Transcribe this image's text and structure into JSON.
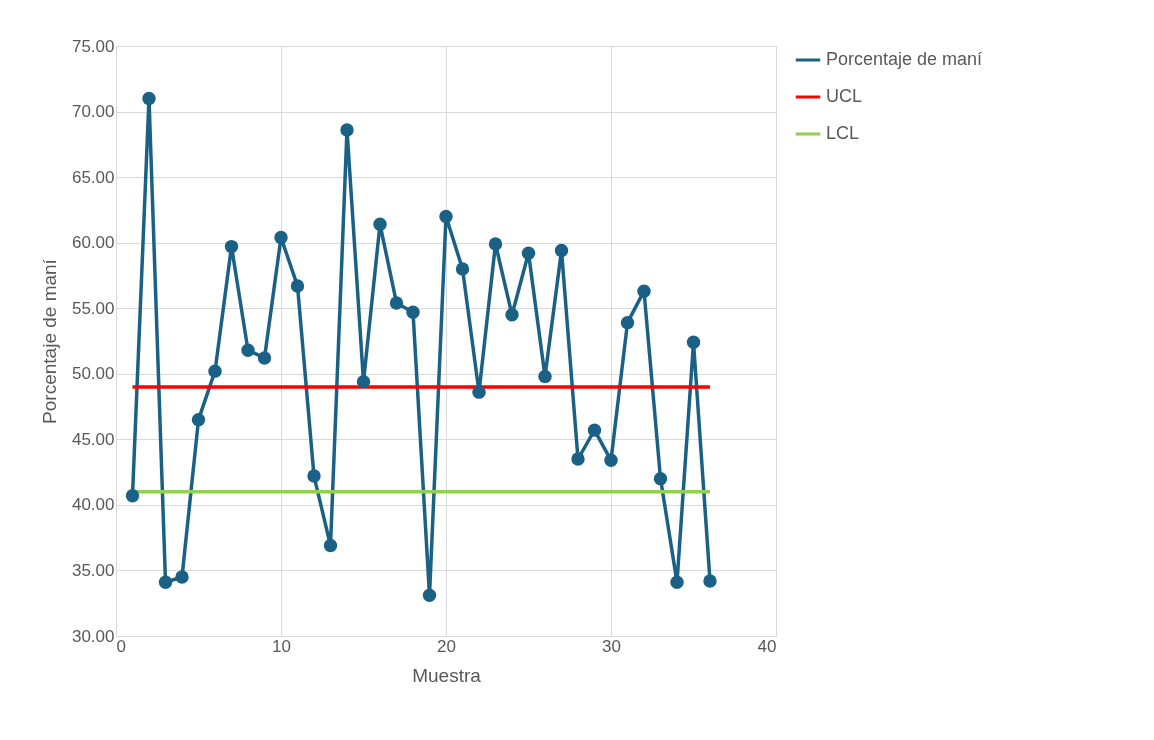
{
  "chart_data": {
    "type": "line",
    "xlabel": "Muestra",
    "ylabel": "Porcentaje de maní",
    "xlim": [
      0,
      40
    ],
    "xticks": [
      0,
      10,
      20,
      30,
      40
    ],
    "ylim": [
      30,
      75
    ],
    "yticks": [
      {
        "value": 30,
        "label": "30.00"
      },
      {
        "value": 35,
        "label": "35.00"
      },
      {
        "value": 40,
        "label": "40.00"
      },
      {
        "value": 45,
        "label": "45.00"
      },
      {
        "value": 50,
        "label": "50.00"
      },
      {
        "value": 55,
        "label": "55.00"
      },
      {
        "value": 60,
        "label": "60.00"
      },
      {
        "value": 65,
        "label": "65.00"
      },
      {
        "value": 70,
        "label": "70.00"
      },
      {
        "value": 75,
        "label": "75.00"
      }
    ],
    "grid": true,
    "legend": "right",
    "line_style": "solid",
    "series": [
      {
        "name": "Porcentaje de maní",
        "color": "#1b6185",
        "marker": "circle",
        "x": [
          1,
          2,
          3,
          4,
          5,
          6,
          7,
          8,
          9,
          10,
          11,
          12,
          13,
          14,
          15,
          16,
          17,
          18,
          19,
          20,
          21,
          22,
          23,
          24,
          25,
          26,
          27,
          28,
          29,
          30,
          31,
          32,
          33,
          34,
          35,
          36
        ],
        "values": [
          40.7,
          71.0,
          34.1,
          34.5,
          46.5,
          50.2,
          59.7,
          51.8,
          51.2,
          60.4,
          56.7,
          42.2,
          36.9,
          68.6,
          49.4,
          61.4,
          55.4,
          54.7,
          33.1,
          62.0,
          58.0,
          48.6,
          59.9,
          54.5,
          59.2,
          49.8,
          59.4,
          43.5,
          45.7,
          43.4,
          53.9,
          56.3,
          42.0,
          34.1,
          52.4,
          34.2
        ]
      },
      {
        "name": "UCL",
        "color": "#ff0000",
        "marker": "none",
        "x": [
          1,
          36
        ],
        "values": [
          49.0,
          49.0
        ]
      },
      {
        "name": "LCL",
        "color": "#92d050",
        "marker": "none",
        "x": [
          1,
          36
        ],
        "values": [
          41.0,
          41.0
        ]
      }
    ]
  }
}
